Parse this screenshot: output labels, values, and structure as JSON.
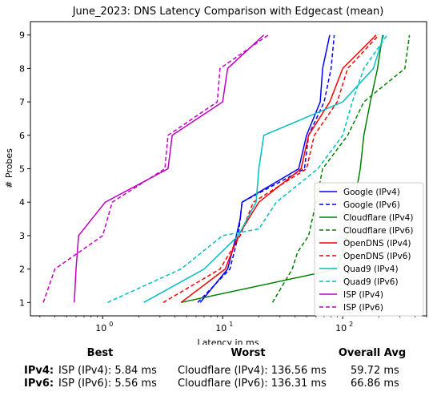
{
  "chart_data": {
    "type": "line",
    "title": "June_2023: DNS Latency Comparison with Edgecast (mean)",
    "xlabel": "Latency in ms",
    "ylabel": "# Probes",
    "xscale": "log",
    "xlim": [
      0.25,
      500
    ],
    "ylim": [
      0.6,
      9.4
    ],
    "x_ticks": [
      {
        "value": 1,
        "base": "10",
        "exp": "0"
      },
      {
        "value": 10,
        "base": "10",
        "exp": "1"
      },
      {
        "value": 100,
        "base": "10",
        "exp": "2"
      }
    ],
    "y_ticks": [
      "1",
      "2",
      "3",
      "4",
      "5",
      "6",
      "7",
      "8",
      "9"
    ],
    "grid": false,
    "legend_position": "lower-right",
    "series": [
      {
        "name": "Google (IPv4)",
        "color": "#0000ff",
        "dash": "solid",
        "points": [
          [
            6.5,
            1
          ],
          [
            11,
            2
          ],
          [
            13,
            3
          ],
          [
            14,
            3.5
          ],
          [
            14.5,
            4
          ],
          [
            43,
            5
          ],
          [
            50,
            6
          ],
          [
            65,
            7
          ],
          [
            68,
            8
          ],
          [
            78,
            9
          ]
        ]
      },
      {
        "name": "Google (IPv6)",
        "color": "#0000ff",
        "dash": "dashed",
        "points": [
          [
            6.2,
            1
          ],
          [
            11.5,
            2
          ],
          [
            13.5,
            3
          ],
          [
            14.5,
            4
          ],
          [
            48,
            5
          ],
          [
            52,
            6
          ],
          [
            70,
            7
          ],
          [
            80,
            8
          ],
          [
            85,
            9
          ]
        ]
      },
      {
        "name": "Cloudflare (IPv4)",
        "color": "#008000",
        "dash": "solid",
        "points": [
          [
            4.5,
            1
          ],
          [
            90,
            2
          ],
          [
            110,
            3
          ],
          [
            125,
            4
          ],
          [
            140,
            5
          ],
          [
            150,
            6
          ],
          [
            170,
            7
          ],
          [
            195,
            8
          ],
          [
            215,
            9
          ]
        ]
      },
      {
        "name": "Cloudflare (IPv6)",
        "color": "#008000",
        "dash": "dashed",
        "points": [
          [
            26,
            1
          ],
          [
            38,
            2
          ],
          [
            42,
            2.5
          ],
          [
            52,
            3
          ],
          [
            60,
            4
          ],
          [
            68,
            5
          ],
          [
            110,
            6
          ],
          [
            150,
            7
          ],
          [
            330,
            8
          ],
          [
            360,
            9
          ]
        ]
      },
      {
        "name": "OpenDNS (IPv4)",
        "color": "#ff0000",
        "dash": "solid",
        "points": [
          [
            4.5,
            1
          ],
          [
            10.5,
            2
          ],
          [
            13.5,
            3
          ],
          [
            20,
            4
          ],
          [
            45,
            5
          ],
          [
            52,
            6
          ],
          [
            78,
            7
          ],
          [
            100,
            8
          ],
          [
            190,
            9
          ]
        ]
      },
      {
        "name": "OpenDNS (IPv6)",
        "color": "#ff0000",
        "dash": "dashed",
        "points": [
          [
            3.2,
            1
          ],
          [
            9.5,
            2
          ],
          [
            14,
            3
          ],
          [
            18,
            4
          ],
          [
            50,
            5
          ],
          [
            58,
            6
          ],
          [
            90,
            7
          ],
          [
            110,
            8
          ],
          [
            200,
            9
          ]
        ]
      },
      {
        "name": "Quad9 (IPv4)",
        "color": "#00bfbf",
        "dash": "solid",
        "points": [
          [
            2.2,
            1
          ],
          [
            7,
            2
          ],
          [
            13.5,
            3
          ],
          [
            19,
            4
          ],
          [
            20,
            5
          ],
          [
            22,
            6
          ],
          [
            100,
            7
          ],
          [
            180,
            8
          ],
          [
            220,
            9
          ]
        ]
      },
      {
        "name": "Quad9 (IPv6)",
        "color": "#00bfbf",
        "dash": "dashed",
        "points": [
          [
            1.1,
            1
          ],
          [
            4.5,
            2
          ],
          [
            10,
            3
          ],
          [
            20,
            3.2
          ],
          [
            28,
            4
          ],
          [
            62,
            5
          ],
          [
            100,
            6
          ],
          [
            120,
            7
          ],
          [
            150,
            8
          ],
          [
            235,
            9
          ]
        ]
      },
      {
        "name": "ISP (IPv4)",
        "color": "#bf00bf",
        "dash": "solid",
        "points": [
          [
            0.58,
            1
          ],
          [
            0.6,
            2
          ],
          [
            0.63,
            3
          ],
          [
            1.05,
            4
          ],
          [
            3.5,
            5
          ],
          [
            3.8,
            6
          ],
          [
            10,
            7
          ],
          [
            11,
            8
          ],
          [
            22,
            9
          ]
        ]
      },
      {
        "name": "ISP (IPv6)",
        "color": "#bf00bf",
        "dash": "dashed",
        "points": [
          [
            0.32,
            1
          ],
          [
            0.4,
            2
          ],
          [
            1,
            3
          ],
          [
            1.2,
            4
          ],
          [
            3.3,
            5
          ],
          [
            3.5,
            6
          ],
          [
            9,
            7
          ],
          [
            9.5,
            8
          ],
          [
            24,
            9
          ]
        ]
      }
    ]
  },
  "summary": {
    "headers": {
      "best": "Best",
      "worst": "Worst",
      "avg": "Overall Avg"
    },
    "rows": [
      {
        "label": "IPv4:",
        "best": "ISP (IPv4): 5.84 ms",
        "worst": "Cloudflare (IPv4): 136.56 ms",
        "avg": "59.72 ms"
      },
      {
        "label": "IPv6:",
        "best": "ISP (IPv6): 5.56 ms",
        "worst": "Cloudflare (IPv6): 136.31 ms",
        "avg": "66.86 ms"
      }
    ]
  }
}
